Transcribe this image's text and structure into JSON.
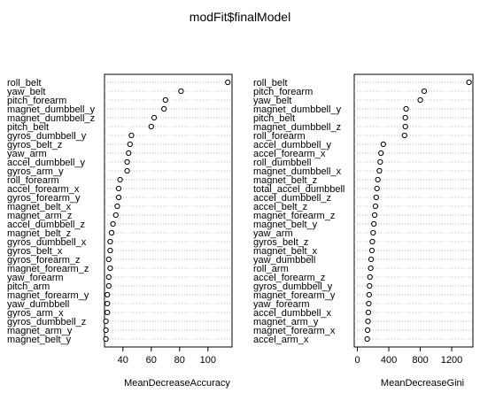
{
  "title": "modFit$finalModel",
  "chart_data": [
    {
      "type": "dotchart",
      "xlabel": "MeanDecreaseAccuracy",
      "ylabel": "",
      "xlim": [
        27,
        117
      ],
      "xticks": [
        40,
        60,
        80,
        100
      ],
      "grid": "dotted gray lines per row",
      "categories": [
        "roll_belt",
        "yaw_belt",
        "pitch_forearm",
        "magnet_dumbbell_y",
        "magnet_dumbbell_z",
        "pitch_belt",
        "gyros_dumbbell_y",
        "gyros_belt_z",
        "yaw_arm",
        "accel_dumbbell_y",
        "gyros_arm_y",
        "roll_forearm",
        "accel_forearm_x",
        "gyros_forearm_y",
        "magnet_belt_x",
        "magnet_arm_z",
        "accel_dumbbell_z",
        "magnet_belt_z",
        "gyros_dumbbell_x",
        "gyros_belt_x",
        "gyros_forearm_z",
        "magnet_forearm_z",
        "yaw_forearm",
        "pitch_arm",
        "magnet_forearm_y",
        "yaw_dumbbell",
        "gyros_arm_x",
        "gyros_dumbbell_z",
        "magnet_arm_y",
        "magnet_belt_y"
      ],
      "values": [
        114,
        81,
        70,
        69,
        62,
        60,
        46,
        45,
        44,
        43,
        43,
        38,
        37,
        37,
        36,
        35,
        33,
        32,
        31,
        31,
        30,
        31,
        30,
        30,
        29,
        29,
        29,
        28,
        28,
        28
      ]
    },
    {
      "type": "dotchart",
      "xlabel": "MeanDecreaseGini",
      "ylabel": "",
      "xlim": [
        -40,
        1470
      ],
      "xticks": [
        0,
        400,
        800,
        1200
      ],
      "grid": "dotted gray lines per row",
      "categories": [
        "roll_belt",
        "pitch_forearm",
        "yaw_belt",
        "magnet_dumbbell_y",
        "pitch_belt",
        "magnet_dumbbell_z",
        "roll_forearm",
        "accel_dumbbell_y",
        "accel_forearm_x",
        "roll_dumbbell",
        "magnet_dumbbell_x",
        "magnet_belt_z",
        "total_accel_dumbbell",
        "accel_dumbbell_z",
        "accel_belt_z",
        "magnet_forearm_z",
        "magnet_belt_y",
        "yaw_arm",
        "gyros_belt_z",
        "magnet_belt_x",
        "yaw_dumbbell",
        "roll_arm",
        "accel_forearm_z",
        "gyros_dumbbell_y",
        "magnet_forearm_y",
        "yaw_forearm",
        "accel_dumbbell_x",
        "magnet_arm_y",
        "magnet_forearm_x",
        "accel_arm_x"
      ],
      "values": [
        1420,
        850,
        800,
        620,
        610,
        610,
        600,
        330,
        300,
        290,
        280,
        260,
        250,
        240,
        230,
        220,
        210,
        200,
        190,
        185,
        175,
        170,
        160,
        155,
        150,
        145,
        140,
        135,
        130,
        125
      ]
    }
  ]
}
